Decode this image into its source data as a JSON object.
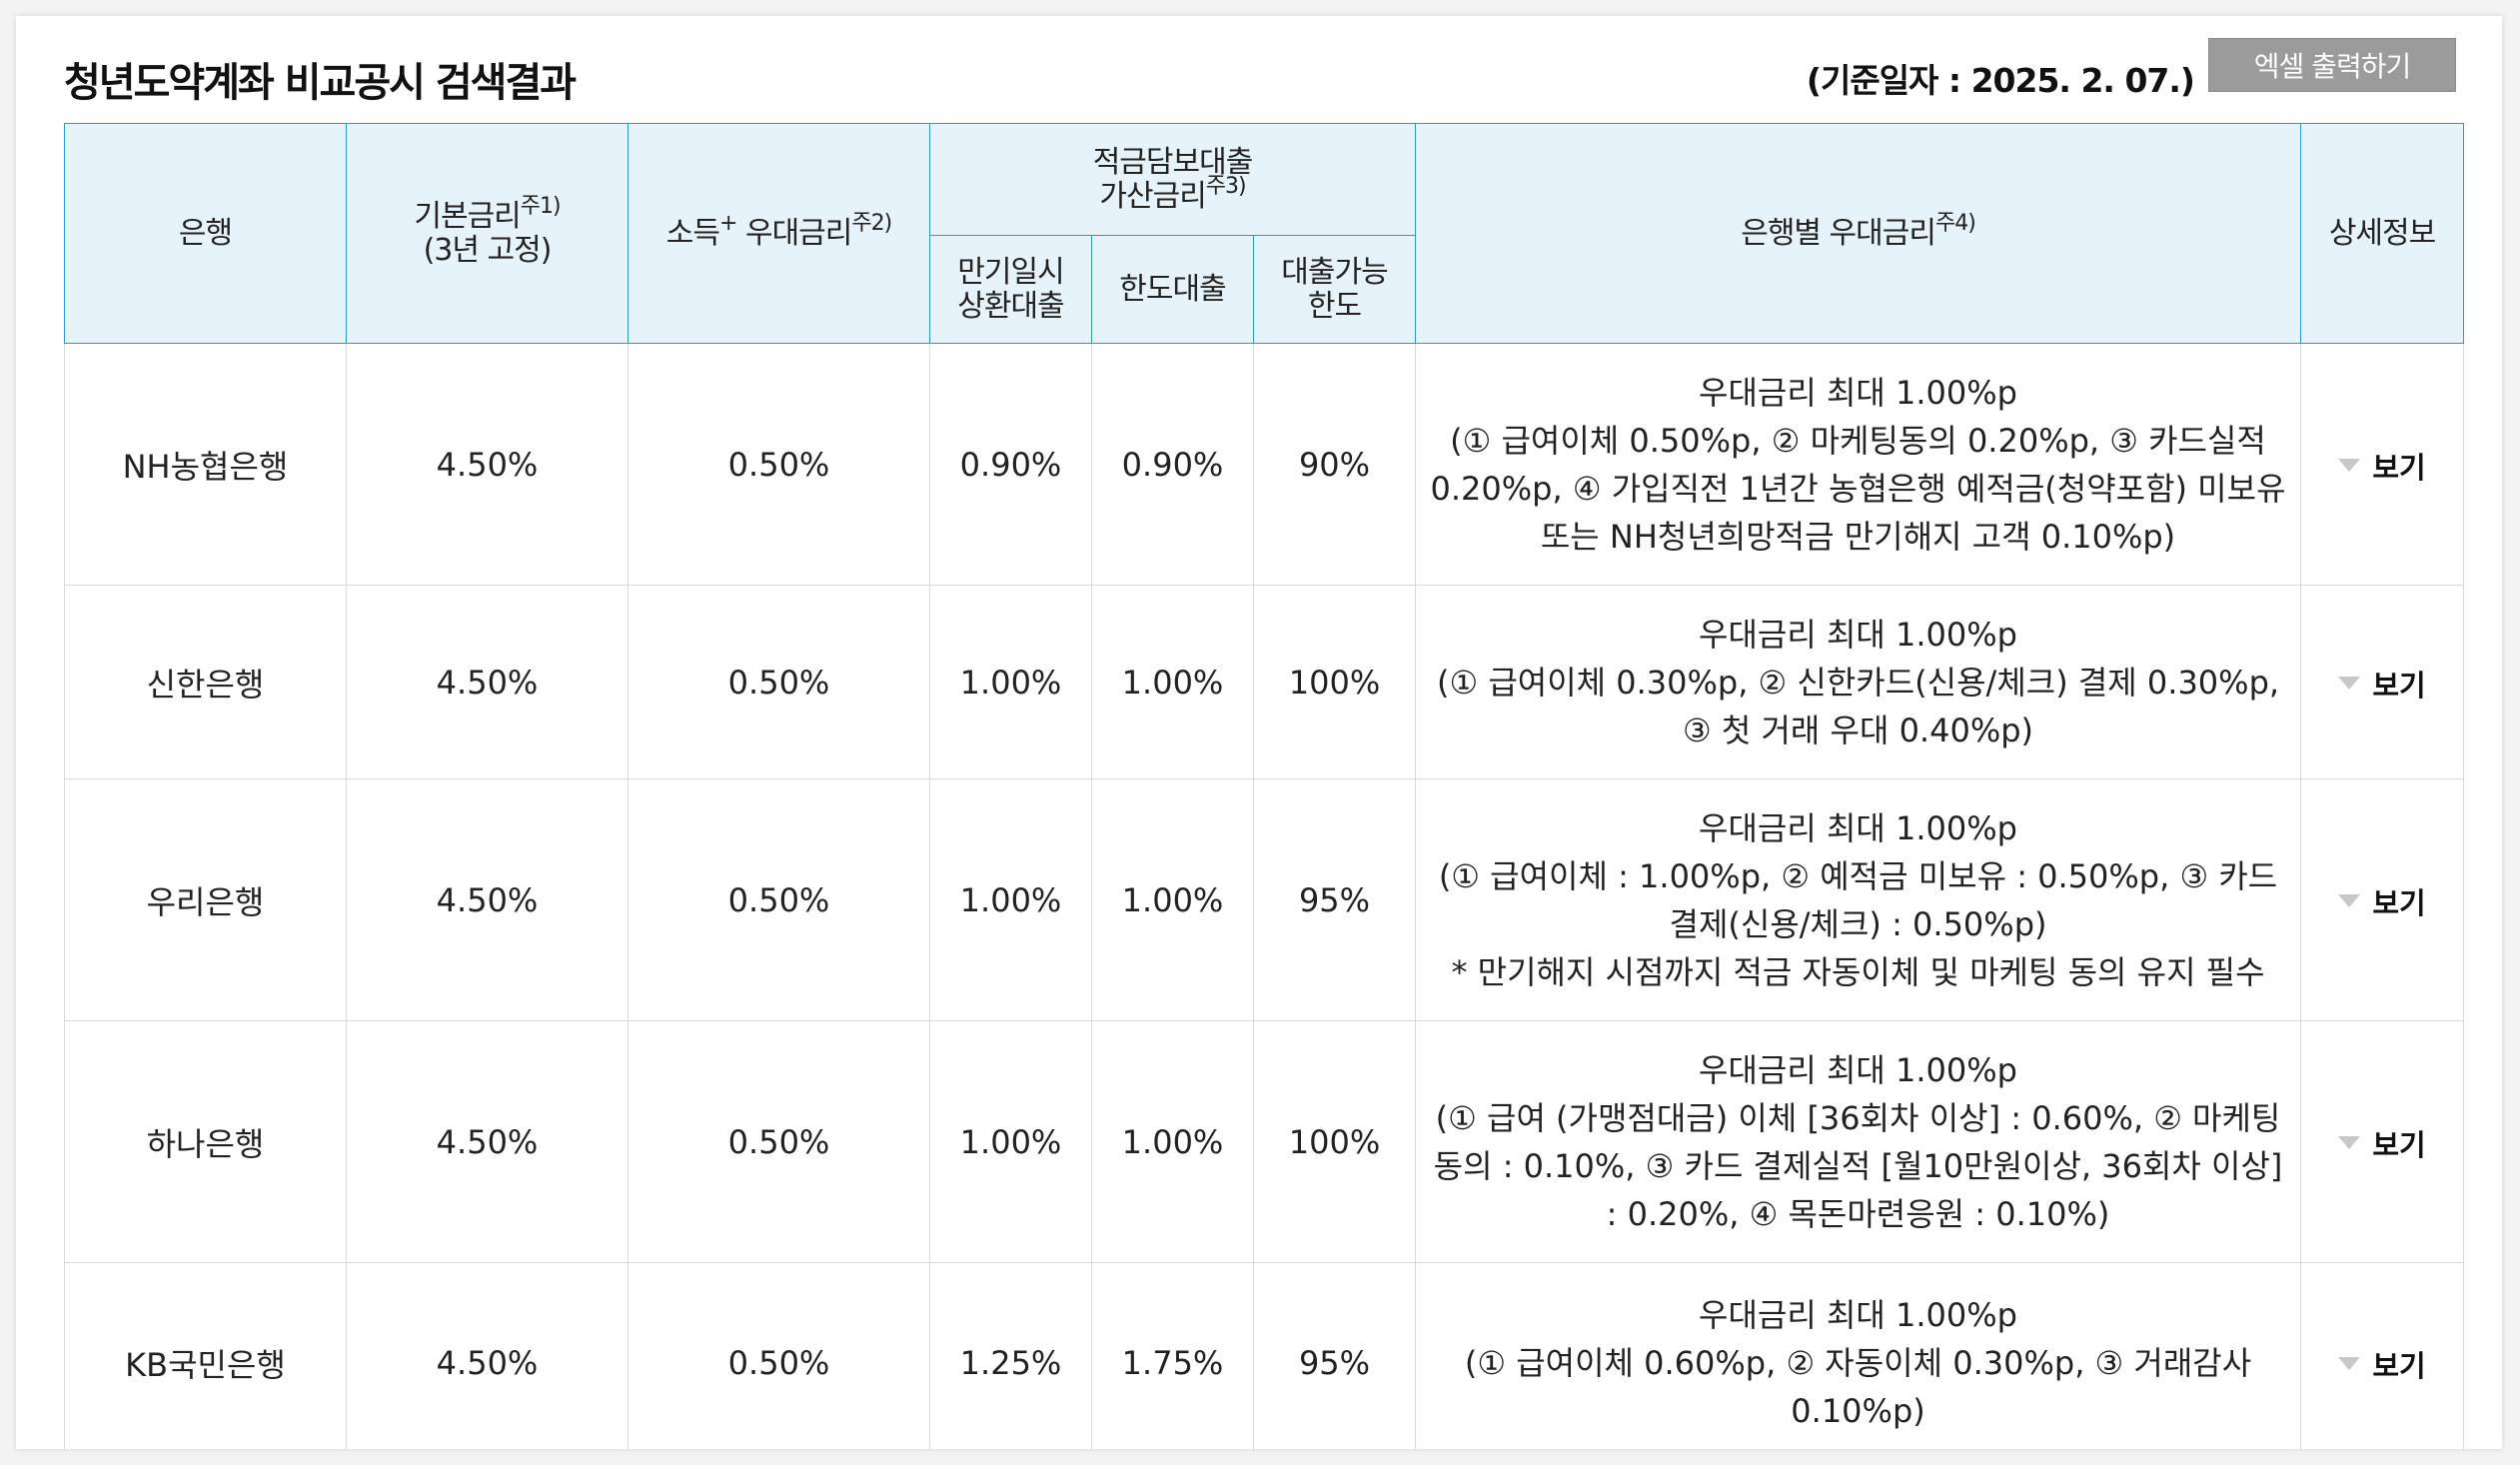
{
  "title": "청년도약계좌 비교공시 검색결과",
  "base_date": "(기준일자 : 2025. 2. 07.)",
  "excel_button": "엑셀 출력하기",
  "headers": {
    "bank": "은행",
    "base_rate": "기본금리",
    "base_rate_sup": "주1)",
    "base_rate_sub": "(3년 고정)",
    "income_rate": "소득",
    "income_rate_plus": "+",
    "income_rate_tail": " 우대금리",
    "income_rate_sup": "주2)",
    "loan_group_line1": "적금담보대출",
    "loan_group_line2": "가산금리",
    "loan_group_sup": "주3)",
    "loan_maturity_line1": "만기일시",
    "loan_maturity_line2": "상환대출",
    "loan_limit": "한도대출",
    "loan_possible_line1": "대출가능",
    "loan_possible_line2": "한도",
    "bank_pref": "은행별 우대금리",
    "bank_pref_sup": "주4)",
    "detail": "상세정보"
  },
  "rows": [
    {
      "bank": "NH농협은행",
      "base_rate": "4.50%",
      "income_rate": "0.50%",
      "maturity": "0.90%",
      "limit_loan": "0.90%",
      "possible": "90%",
      "pref_lines": [
        "우대금리 최대 1.00%p",
        "(① 급여이체 0.50%p, ② 마케팅동의 0.20%p, ③ 카드실적",
        "0.20%p, ④ 가입직전 1년간 농협은행 예적금(청약포함) 미보유",
        "또는 NH청년희망적금 만기해지 고객 0.10%p)"
      ],
      "view": "보기"
    },
    {
      "bank": "신한은행",
      "base_rate": "4.50%",
      "income_rate": "0.50%",
      "maturity": "1.00%",
      "limit_loan": "1.00%",
      "possible": "100%",
      "pref_lines": [
        "우대금리 최대 1.00%p",
        "(① 급여이체 0.30%p, ② 신한카드(신용/체크) 결제 0.30%p,",
        "③ 첫 거래 우대 0.40%p)"
      ],
      "view": "보기"
    },
    {
      "bank": "우리은행",
      "base_rate": "4.50%",
      "income_rate": "0.50%",
      "maturity": "1.00%",
      "limit_loan": "1.00%",
      "possible": "95%",
      "pref_lines": [
        "우대금리 최대 1.00%p",
        "(① 급여이체 : 1.00%p, ② 예적금 미보유 : 0.50%p, ③ 카드",
        "결제(신용/체크) : 0.50%p)",
        "* 만기해지 시점까지 적금 자동이체 및 마케팅 동의 유지 필수"
      ],
      "view": "보기"
    },
    {
      "bank": "하나은행",
      "base_rate": "4.50%",
      "income_rate": "0.50%",
      "maturity": "1.00%",
      "limit_loan": "1.00%",
      "possible": "100%",
      "pref_lines": [
        "우대금리 최대 1.00%p",
        "(① 급여 (가맹점대금) 이체 [36회차 이상] : 0.60%, ② 마케팅",
        "동의 : 0.10%, ③ 카드 결제실적 [월10만원이상, 36회차 이상]",
        ": 0.20%, ④ 목돈마련응원 : 0.10%)"
      ],
      "view": "보기"
    },
    {
      "bank": "KB국민은행",
      "base_rate": "4.50%",
      "income_rate": "0.50%",
      "maturity": "1.25%",
      "limit_loan": "1.75%",
      "possible": "95%",
      "pref_lines": [
        "우대금리 최대 1.00%p",
        "(① 급여이체 0.60%p, ② 자동이체 0.30%p, ③ 거래감사",
        "0.10%p)"
      ],
      "view": "보기"
    }
  ]
}
